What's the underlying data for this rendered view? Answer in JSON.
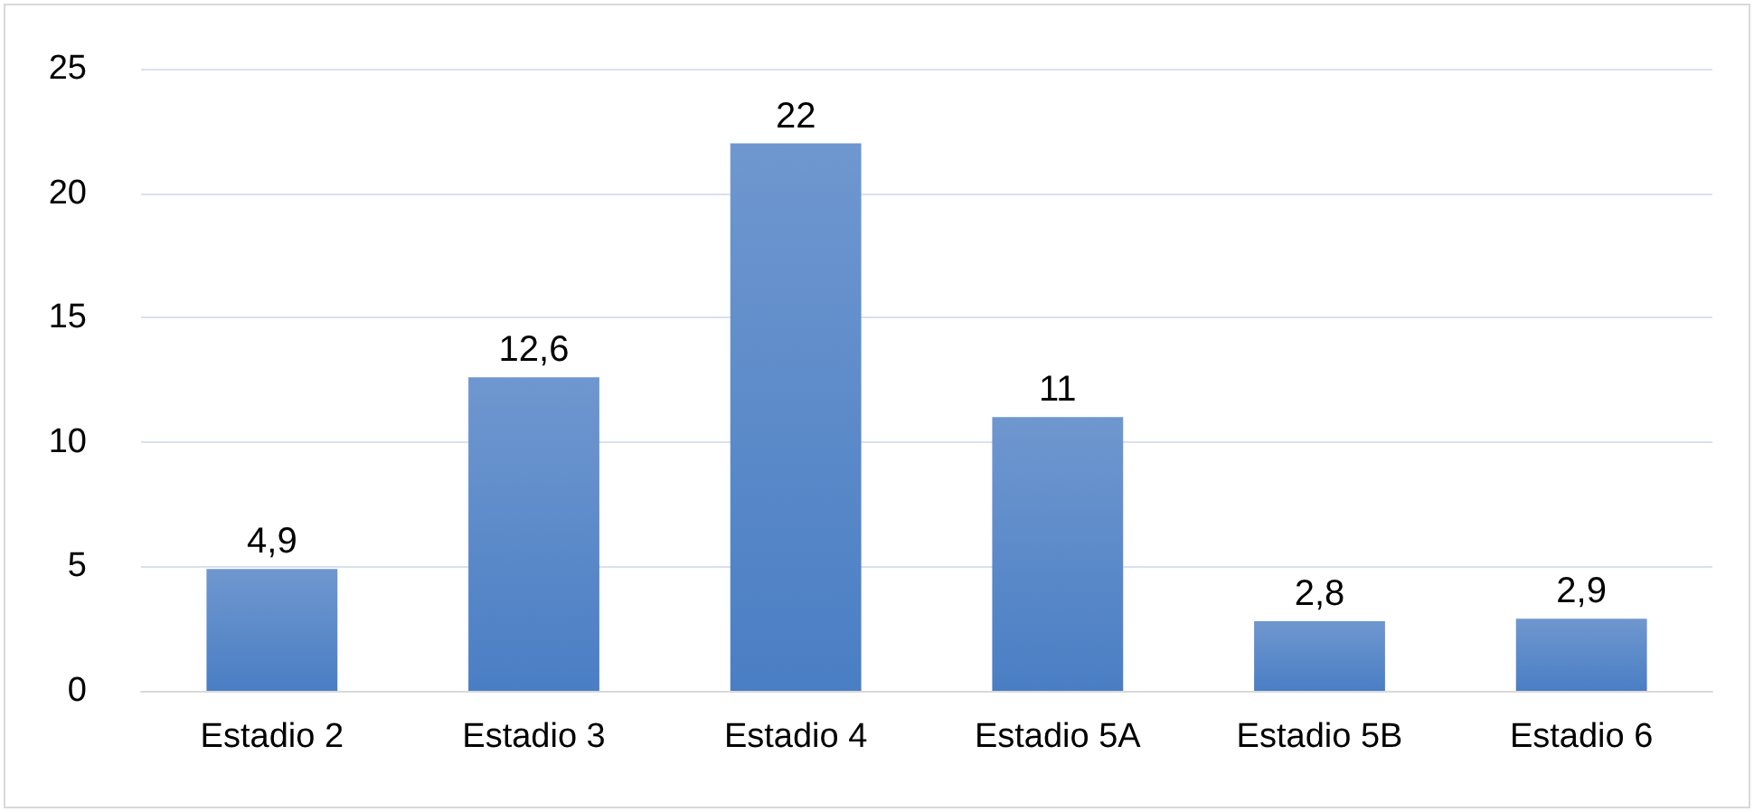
{
  "chart_data": {
    "type": "bar",
    "categories": [
      "Estadio 2",
      "Estadio 3",
      "Estadio 4",
      "Estadio 5A",
      "Estadio 5B",
      "Estadio 6"
    ],
    "values": [
      4.9,
      12.6,
      22,
      11,
      2.8,
      2.9
    ],
    "value_labels": [
      "4,9",
      "12,6",
      "22",
      "11",
      "2,8",
      "2,9"
    ],
    "color": "#4a7ec4",
    "ylim": [
      0,
      25
    ],
    "yticks": [
      0,
      5,
      10,
      15,
      20,
      25
    ],
    "grid": "y"
  }
}
